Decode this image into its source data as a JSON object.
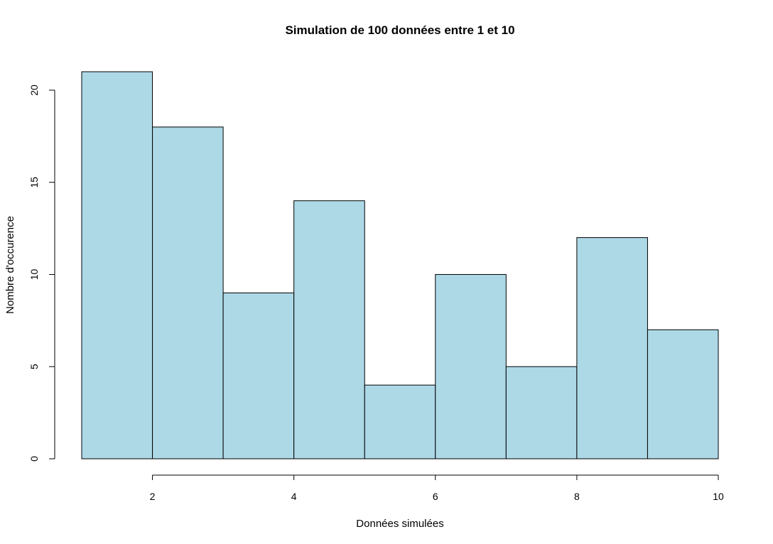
{
  "chart_data": {
    "type": "bar",
    "title": "Simulation de 100 données entre 1 et 10",
    "xlabel": "Données simulées",
    "ylabel": "Nombre d'occurence",
    "bins": [
      {
        "from": 1,
        "to": 2,
        "count": 21
      },
      {
        "from": 2,
        "to": 3,
        "count": 18
      },
      {
        "from": 3,
        "to": 4,
        "count": 9
      },
      {
        "from": 4,
        "to": 5,
        "count": 14
      },
      {
        "from": 5,
        "to": 6,
        "count": 4
      },
      {
        "from": 6,
        "to": 7,
        "count": 10
      },
      {
        "from": 7,
        "to": 8,
        "count": 5
      },
      {
        "from": 8,
        "to": 9,
        "count": 12
      },
      {
        "from": 9,
        "to": 10,
        "count": 7
      }
    ],
    "xticks": [
      2,
      4,
      6,
      8,
      10
    ],
    "yticks": [
      0,
      5,
      10,
      15,
      20
    ],
    "xlim": [
      1,
      10
    ],
    "ylim": [
      0,
      21
    ],
    "bar_color": "#add8e6",
    "edge_color": "#000000",
    "grid": false,
    "legend": "none"
  }
}
